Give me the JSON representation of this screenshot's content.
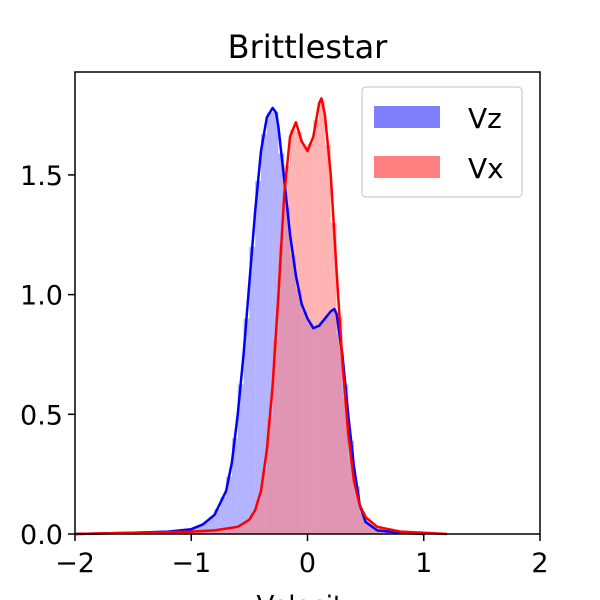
{
  "chart_data": {
    "type": "area",
    "title": "Brittlestar",
    "xlabel": "Velocity",
    "ylabel": "",
    "xlim": [
      -2,
      2
    ],
    "ylim": [
      0,
      1.93
    ],
    "xticks": [
      -2,
      -1,
      0,
      1,
      2
    ],
    "xtick_labels": [
      "−2",
      "−1",
      "0",
      "1",
      "2"
    ],
    "yticks": [
      0,
      0.5,
      1.0,
      1.5
    ],
    "ytick_labels": [
      "0.0",
      "0.5",
      "1.0",
      "1.5"
    ],
    "grid": false,
    "legend_position": "top-right",
    "series": [
      {
        "name": "Vz",
        "color": "#0000ff",
        "fill": "#8080ff",
        "x": [
          -2.0,
          -1.5,
          -1.2,
          -1.0,
          -0.9,
          -0.8,
          -0.7,
          -0.65,
          -0.6,
          -0.55,
          -0.5,
          -0.45,
          -0.4,
          -0.35,
          -0.3,
          -0.27,
          -0.25,
          -0.2,
          -0.15,
          -0.1,
          -0.05,
          0.0,
          0.05,
          0.1,
          0.15,
          0.2,
          0.23,
          0.25,
          0.3,
          0.35,
          0.4,
          0.45,
          0.5,
          0.6,
          0.8,
          1.0
        ],
        "values": [
          0.0,
          0.005,
          0.01,
          0.02,
          0.04,
          0.08,
          0.18,
          0.3,
          0.5,
          0.75,
          1.05,
          1.35,
          1.6,
          1.74,
          1.78,
          1.76,
          1.7,
          1.48,
          1.25,
          1.08,
          0.96,
          0.9,
          0.86,
          0.87,
          0.9,
          0.93,
          0.94,
          0.92,
          0.75,
          0.5,
          0.28,
          0.12,
          0.05,
          0.015,
          0.005,
          0.0
        ]
      },
      {
        "name": "Vx",
        "color": "#ff0000",
        "fill": "#ff8080",
        "x": [
          -2.0,
          -1.5,
          -1.0,
          -0.8,
          -0.6,
          -0.5,
          -0.45,
          -0.4,
          -0.35,
          -0.3,
          -0.25,
          -0.2,
          -0.15,
          -0.1,
          -0.05,
          0.0,
          0.05,
          0.1,
          0.12,
          0.15,
          0.2,
          0.25,
          0.3,
          0.35,
          0.4,
          0.45,
          0.5,
          0.6,
          0.8,
          1.0,
          1.2
        ],
        "values": [
          0.0,
          0.005,
          0.01,
          0.015,
          0.03,
          0.06,
          0.1,
          0.18,
          0.35,
          0.62,
          1.0,
          1.42,
          1.66,
          1.72,
          1.64,
          1.6,
          1.66,
          1.8,
          1.82,
          1.75,
          1.5,
          1.1,
          0.72,
          0.42,
          0.22,
          0.12,
          0.07,
          0.03,
          0.01,
          0.005,
          0.0
        ]
      }
    ]
  }
}
